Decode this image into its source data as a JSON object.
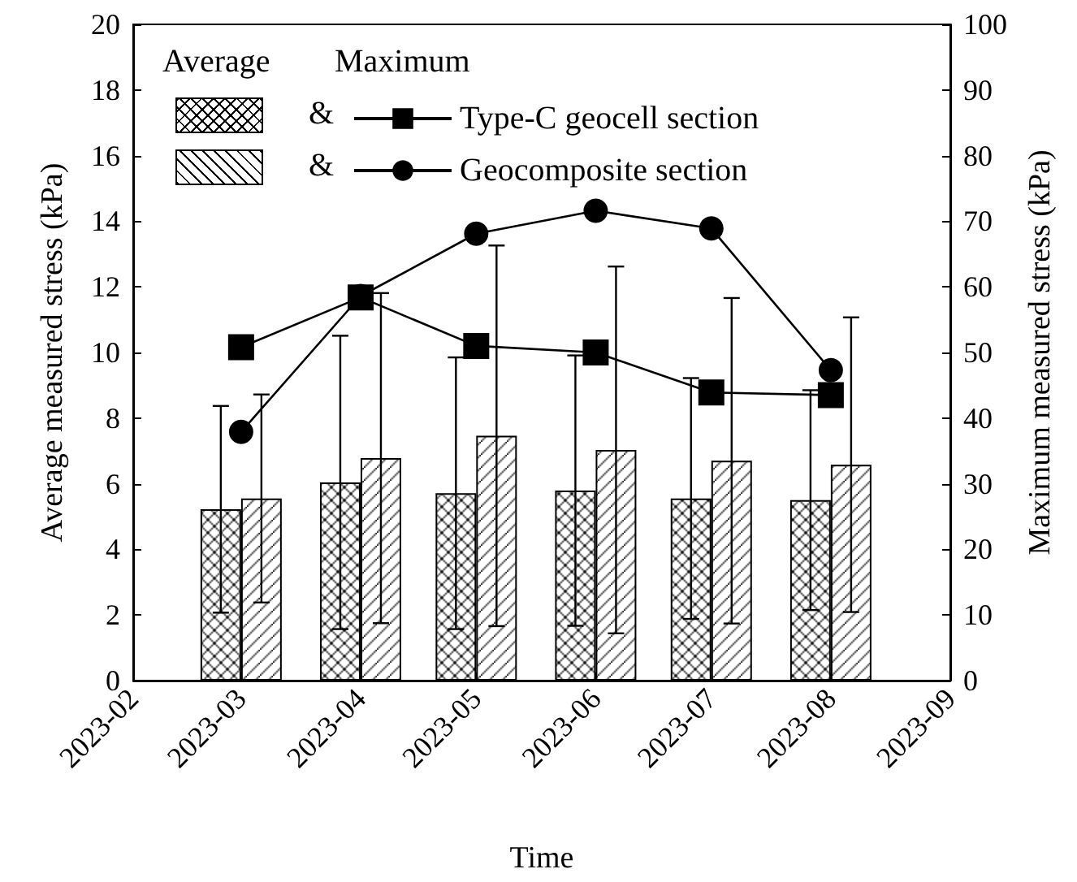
{
  "chart_data": {
    "type": "bar",
    "xlabel": "Time",
    "ylabel": "Average measured stress (kPa)",
    "y2label": "Maximum measured stress (kPa)",
    "x": [
      "2023-03",
      "2023-04",
      "2023-05",
      "2023-06",
      "2023-07",
      "2023-08"
    ],
    "xlim": [
      "2023-02",
      "2023-09"
    ],
    "xticks": [
      "2023-02",
      "2023-03",
      "2023-04",
      "2023-05",
      "2023-06",
      "2023-07",
      "2023-08",
      "2023-09"
    ],
    "ylim": [
      0,
      20
    ],
    "yticks": [
      0,
      2,
      4,
      6,
      8,
      10,
      12,
      14,
      16,
      18,
      20
    ],
    "y2lim": [
      0,
      100
    ],
    "y2ticks": [
      0,
      10,
      20,
      30,
      40,
      50,
      60,
      70,
      80,
      90,
      100
    ],
    "series": [
      {
        "color": "#000000",
        "values": [
          5.22,
          6.04,
          5.71,
          5.79,
          5.55,
          5.5
        ],
        "errors": [
          3.15,
          4.47,
          4.14,
          4.12,
          3.67,
          3.35
        ]
      },
      {
        "color": "#000000",
        "values": [
          5.55,
          6.78,
          7.46,
          7.03,
          6.7,
          6.58
        ],
        "errors": [
          3.17,
          5.03,
          5.8,
          5.59,
          4.96,
          4.49
        ]
      },
      {
        "type": "line",
        "name": "Type-C geocell section",
        "axis": "y2",
        "marker": "square",
        "color": "#000000",
        "values": [
          50.8,
          58.4,
          51.0,
          50.0,
          43.9,
          43.5
        ]
      },
      {
        "type": "line",
        "name": "Geocomposite section",
        "axis": "y2",
        "marker": "circle",
        "color": "#000000",
        "values": [
          37.9,
          58.6,
          68.1,
          71.6,
          68.9,
          47.3
        ]
      }
    ],
    "legend": "top left",
    "grid": false,
    "annotations": [
      "Average",
      "Maximum",
      "&",
      "&"
    ]
  }
}
